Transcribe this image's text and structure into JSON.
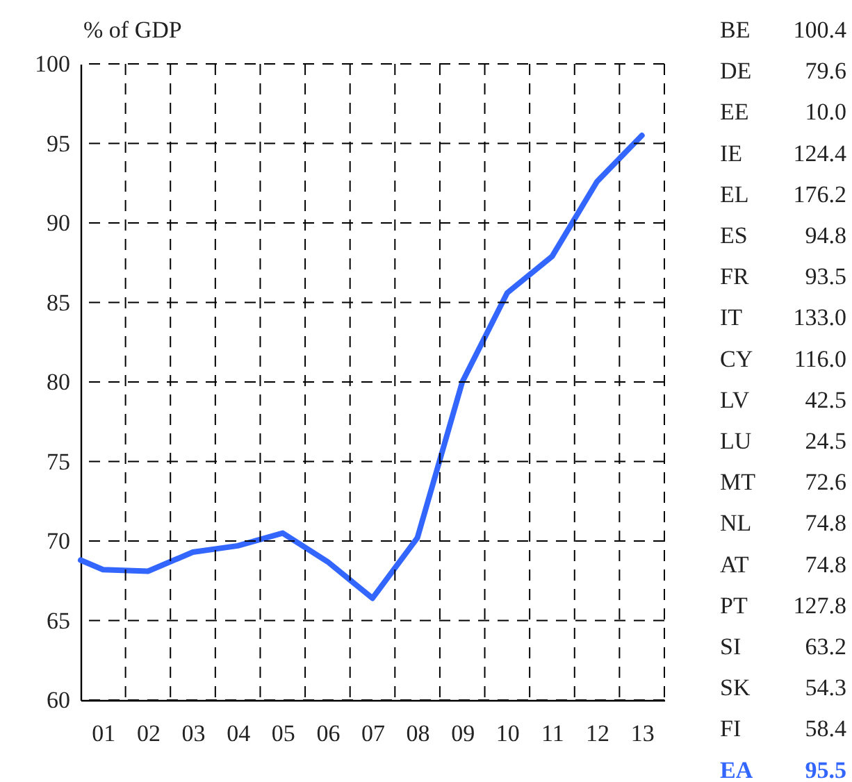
{
  "chart_data": {
    "type": "line",
    "ylabel": "% of GDP",
    "x": [
      2000.5,
      2001,
      2002,
      2003,
      2004,
      2005,
      2006,
      2007,
      2008,
      2009,
      2010,
      2011,
      2012,
      2013
    ],
    "series": [
      {
        "color": "#3366ff",
        "values": [
          68.8,
          68.2,
          68.1,
          69.3,
          69.7,
          70.5,
          68.7,
          66.4,
          70.2,
          80.0,
          85.6,
          87.9,
          92.6,
          95.5
        ]
      }
    ],
    "xlim": [
      2000.5,
      2013.5
    ],
    "xticks": [
      {
        "value": 2001,
        "label": "01"
      },
      {
        "value": 2002,
        "label": "02"
      },
      {
        "value": 2003,
        "label": "03"
      },
      {
        "value": 2004,
        "label": "04"
      },
      {
        "value": 2005,
        "label": "05"
      },
      {
        "value": 2006,
        "label": "06"
      },
      {
        "value": 2007,
        "label": "07"
      },
      {
        "value": 2008,
        "label": "08"
      },
      {
        "value": 2009,
        "label": "09"
      },
      {
        "value": 2010,
        "label": "10"
      },
      {
        "value": 2011,
        "label": "11"
      },
      {
        "value": 2012,
        "label": "12"
      },
      {
        "value": 2013,
        "label": "13"
      },
      {
        "value": 2001.5,
        "label": null
      },
      {
        "value": 2002.5,
        "label": null
      },
      {
        "value": 2003.5,
        "label": null
      },
      {
        "value": 2004.5,
        "label": null
      },
      {
        "value": 2005.5,
        "label": null
      },
      {
        "value": 2006.5,
        "label": null
      },
      {
        "value": 2007.5,
        "label": null
      },
      {
        "value": 2008.5,
        "label": null
      },
      {
        "value": 2009.5,
        "label": null
      },
      {
        "value": 2010.5,
        "label": null
      },
      {
        "value": 2011.5,
        "label": null
      },
      {
        "value": 2012.5,
        "label": null
      },
      {
        "value": 2013.5,
        "label": null
      }
    ],
    "ylim": [
      60,
      100
    ],
    "yticks": [
      60,
      65,
      70,
      75,
      80,
      85,
      90,
      95,
      100
    ],
    "grid": true,
    "line_style": "solid",
    "marker": "none",
    "annotations": [
      "BE",
      "100.4",
      "DE",
      "79.6",
      "EE",
      "10.0",
      "IE",
      "124.4",
      "EL",
      "176.2",
      "ES",
      "94.8",
      "FR",
      "93.5",
      "IT",
      "133.0",
      "CY",
      "116.0",
      "LV",
      "42.5",
      "LU",
      "24.5",
      "MT",
      "72.6",
      "NL",
      "74.8",
      "AT",
      "74.8",
      "PT",
      "127.8",
      "SI",
      "63.2",
      "SK",
      "54.3",
      "FI",
      "58.4",
      "EA",
      "95.5"
    ]
  }
}
